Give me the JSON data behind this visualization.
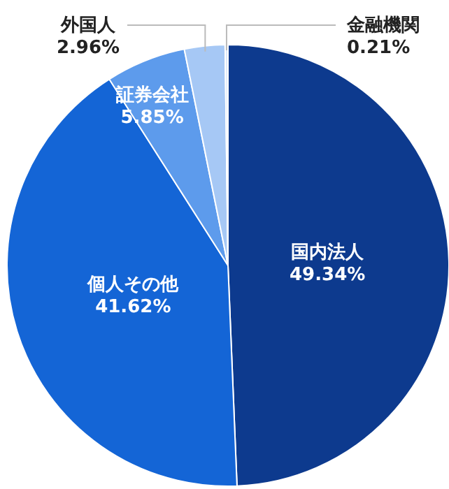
{
  "chart_data": {
    "type": "pie",
    "categories": [
      "国内法人",
      "個人その他",
      "証券会社",
      "外国人",
      "金融機関"
    ],
    "values": [
      49.34,
      41.62,
      5.85,
      2.96,
      0.21
    ],
    "value_labels": [
      "49.34%",
      "41.62%",
      "5.85%",
      "2.96%",
      "0.21%"
    ],
    "colors": [
      "#0d3a8e",
      "#1465d6",
      "#5d9bec",
      "#a6c8f5",
      "#dce8fa"
    ]
  }
}
